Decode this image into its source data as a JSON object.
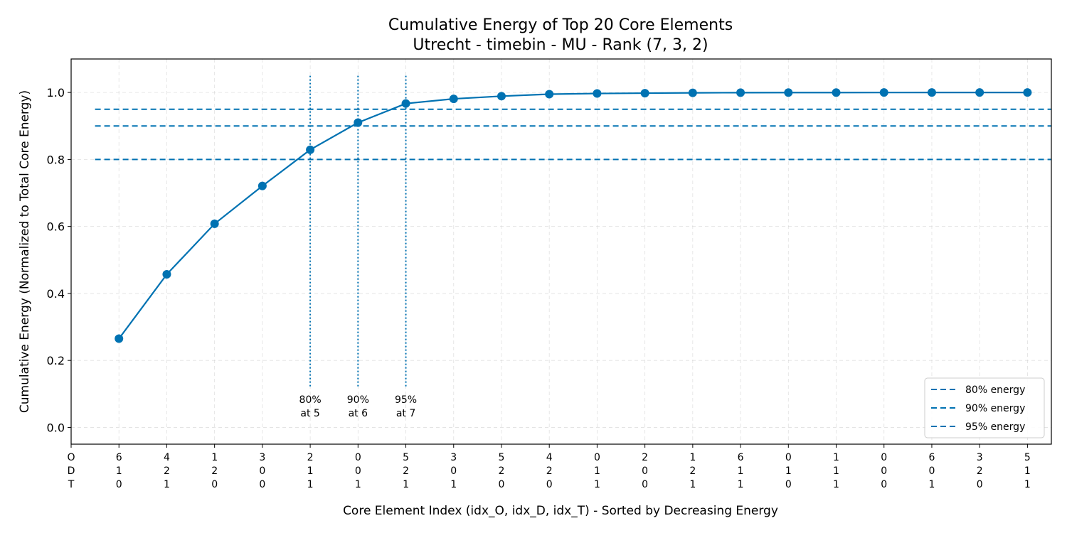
{
  "chart_data": {
    "type": "line",
    "title": "Cumulative Energy of Top 20 Core Elements",
    "subtitle": "Utrecht - timebin - MU - Rank (7, 3, 2)",
    "xlabel": "Core Element Index (idx_O, idx_D, idx_T) - Sorted by Decreasing Energy",
    "ylabel": "Cumulative Energy (Normalized to Total Core Energy)",
    "ylim": [
      -0.05,
      1.1
    ],
    "xlim": [
      0,
      20.5
    ],
    "yticks": [
      0.0,
      0.2,
      0.4,
      0.6,
      0.8,
      1.0
    ],
    "ytick_labels": [
      "0.0",
      "0.2",
      "0.4",
      "0.6",
      "0.8",
      "1.0"
    ],
    "grid": true,
    "xticks": [
      {
        "x": 0,
        "lines": [
          "O",
          "D",
          "T"
        ]
      },
      {
        "x": 1,
        "lines": [
          "6",
          "1",
          "0"
        ]
      },
      {
        "x": 2,
        "lines": [
          "4",
          "2",
          "1"
        ]
      },
      {
        "x": 3,
        "lines": [
          "1",
          "2",
          "0"
        ]
      },
      {
        "x": 4,
        "lines": [
          "3",
          "0",
          "0"
        ]
      },
      {
        "x": 5,
        "lines": [
          "2",
          "1",
          "1"
        ]
      },
      {
        "x": 6,
        "lines": [
          "0",
          "0",
          "1"
        ]
      },
      {
        "x": 7,
        "lines": [
          "5",
          "2",
          "1"
        ]
      },
      {
        "x": 8,
        "lines": [
          "3",
          "0",
          "1"
        ]
      },
      {
        "x": 9,
        "lines": [
          "5",
          "2",
          "0"
        ]
      },
      {
        "x": 10,
        "lines": [
          "4",
          "2",
          "0"
        ]
      },
      {
        "x": 11,
        "lines": [
          "0",
          "1",
          "1"
        ]
      },
      {
        "x": 12,
        "lines": [
          "2",
          "0",
          "0"
        ]
      },
      {
        "x": 13,
        "lines": [
          "1",
          "2",
          "1"
        ]
      },
      {
        "x": 14,
        "lines": [
          "6",
          "1",
          "1"
        ]
      },
      {
        "x": 15,
        "lines": [
          "0",
          "1",
          "0"
        ]
      },
      {
        "x": 16,
        "lines": [
          "1",
          "1",
          "1"
        ]
      },
      {
        "x": 17,
        "lines": [
          "0",
          "0",
          "0"
        ]
      },
      {
        "x": 18,
        "lines": [
          "6",
          "0",
          "1"
        ]
      },
      {
        "x": 19,
        "lines": [
          "3",
          "2",
          "0"
        ]
      },
      {
        "x": 20,
        "lines": [
          "5",
          "1",
          "1"
        ]
      }
    ],
    "series": [
      {
        "x": [
          1,
          2,
          3,
          4,
          5,
          6,
          7,
          8,
          9,
          10,
          11,
          12,
          13,
          14,
          15,
          16,
          17,
          18,
          19,
          20
        ],
        "values": [
          0.265,
          0.457,
          0.608,
          0.721,
          0.829,
          0.91,
          0.967,
          0.981,
          0.989,
          0.995,
          0.997,
          0.998,
          0.999,
          0.9995,
          0.9997,
          0.9998,
          0.9999,
          0.99995,
          0.99998,
          1.0
        ],
        "color": "#0072b2"
      }
    ],
    "thresholds": [
      {
        "label": "80% energy",
        "y": 0.8,
        "color": "#0072b2"
      },
      {
        "label": "90% energy",
        "y": 0.9,
        "color": "#0072b2"
      },
      {
        "label": "95% energy",
        "y": 0.95,
        "color": "#0072b2"
      }
    ],
    "markers": [
      {
        "x": 5,
        "lines": [
          "80%",
          "at 5"
        ]
      },
      {
        "x": 6,
        "lines": [
          "90%",
          "at 6"
        ]
      },
      {
        "x": 7,
        "lines": [
          "95%",
          "at 7"
        ]
      }
    ],
    "legend_position": "lower-right"
  }
}
